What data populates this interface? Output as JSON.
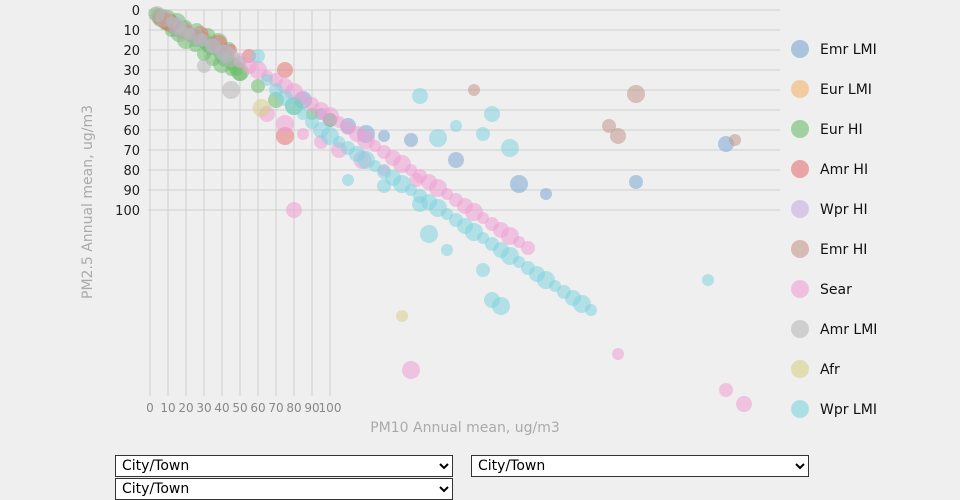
{
  "controls": {
    "x_select": {
      "options": [
        "City/Town"
      ],
      "selected": "City/Town"
    },
    "y_select": {
      "options": [
        "City/Town"
      ],
      "selected": "City/Town"
    },
    "size_select": {
      "options": [
        "City/Town"
      ],
      "selected": "City/Town"
    }
  },
  "chart_data": {
    "type": "scatter",
    "xlabel": "PM10 Annual mean, ug/m3",
    "ylabel": "PM2.5 Annual mean, ug/m3",
    "x_ticks": [
      0,
      10,
      20,
      30,
      40,
      50,
      60,
      70,
      80,
      90,
      100
    ],
    "y_ticks": [
      0,
      10,
      20,
      30,
      40,
      50,
      60,
      70,
      80,
      90,
      100
    ],
    "grid": true,
    "legend_position": "right",
    "series": [
      {
        "name": "Emr LMI",
        "color": "#7ba7d1",
        "points": [
          [
            85,
            45
          ],
          [
            95,
            52
          ],
          [
            100,
            55
          ],
          [
            110,
            58
          ],
          [
            120,
            62
          ],
          [
            130,
            63
          ],
          [
            145,
            65
          ],
          [
            170,
            75
          ],
          [
            205,
            87
          ],
          [
            220,
            92
          ],
          [
            270,
            86
          ],
          [
            320,
            67
          ]
        ]
      },
      {
        "name": "Eur LMI",
        "color": "#f3b26b",
        "points": [
          [
            5,
            3
          ],
          [
            8,
            5
          ],
          [
            12,
            7
          ],
          [
            15,
            9
          ],
          [
            20,
            10
          ],
          [
            25,
            13
          ],
          [
            30,
            15
          ]
        ]
      },
      {
        "name": "Eur HI",
        "color": "#6dbd6d",
        "points": [
          [
            3,
            2
          ],
          [
            5,
            3
          ],
          [
            6,
            4
          ],
          [
            8,
            5
          ],
          [
            9,
            6
          ],
          [
            10,
            6
          ],
          [
            12,
            7
          ],
          [
            14,
            8
          ],
          [
            15,
            9
          ],
          [
            17,
            10
          ],
          [
            18,
            10
          ],
          [
            20,
            11
          ],
          [
            22,
            12
          ],
          [
            24,
            13
          ],
          [
            26,
            14
          ],
          [
            28,
            15
          ],
          [
            30,
            16
          ],
          [
            32,
            17
          ],
          [
            34,
            18
          ],
          [
            36,
            19
          ],
          [
            38,
            20
          ],
          [
            40,
            22
          ],
          [
            42,
            24
          ],
          [
            44,
            25
          ],
          [
            46,
            27
          ],
          [
            48,
            29
          ],
          [
            50,
            31
          ],
          [
            8,
            7
          ],
          [
            12,
            10
          ],
          [
            16,
            12
          ],
          [
            20,
            15
          ],
          [
            25,
            18
          ],
          [
            30,
            22
          ],
          [
            35,
            24
          ],
          [
            40,
            27
          ],
          [
            45,
            30
          ],
          [
            50,
            32
          ],
          [
            10,
            4
          ],
          [
            15,
            6
          ],
          [
            20,
            8
          ],
          [
            26,
            10
          ],
          [
            32,
            13
          ],
          [
            38,
            16
          ],
          [
            44,
            19
          ],
          [
            60,
            38
          ],
          [
            70,
            45
          ],
          [
            80,
            48
          ],
          [
            90,
            52
          ],
          [
            100,
            55
          ]
        ]
      },
      {
        "name": "Amr HI",
        "color": "#e57373",
        "points": [
          [
            6,
            4
          ],
          [
            10,
            6
          ],
          [
            14,
            8
          ],
          [
            20,
            10
          ],
          [
            28,
            12
          ],
          [
            38,
            17
          ],
          [
            45,
            20
          ],
          [
            55,
            23
          ],
          [
            75,
            30
          ],
          [
            75,
            63
          ]
        ]
      },
      {
        "name": "Wpr HI",
        "color": "#c5aee0",
        "points": [
          [
            15,
            8
          ],
          [
            22,
            12
          ],
          [
            28,
            15
          ],
          [
            35,
            18
          ],
          [
            42,
            22
          ]
        ]
      },
      {
        "name": "Emr HI",
        "color": "#c4968a",
        "points": [
          [
            180,
            40
          ],
          [
            255,
            58
          ],
          [
            260,
            63
          ],
          [
            270,
            42
          ],
          [
            325,
            65
          ]
        ]
      },
      {
        "name": "Sear",
        "color": "#ee9fd4",
        "points": [
          [
            50,
            25
          ],
          [
            55,
            28
          ],
          [
            60,
            30
          ],
          [
            65,
            33
          ],
          [
            70,
            35
          ],
          [
            75,
            38
          ],
          [
            80,
            41
          ],
          [
            85,
            44
          ],
          [
            90,
            47
          ],
          [
            95,
            50
          ],
          [
            100,
            53
          ],
          [
            105,
            56
          ],
          [
            110,
            59
          ],
          [
            115,
            62
          ],
          [
            120,
            65
          ],
          [
            125,
            68
          ],
          [
            130,
            71
          ],
          [
            135,
            74
          ],
          [
            140,
            77
          ],
          [
            145,
            80
          ],
          [
            150,
            83
          ],
          [
            155,
            86
          ],
          [
            160,
            89
          ],
          [
            165,
            92
          ],
          [
            170,
            95
          ],
          [
            175,
            98
          ],
          [
            180,
            101
          ],
          [
            185,
            104
          ],
          [
            190,
            107
          ],
          [
            195,
            110
          ],
          [
            200,
            113
          ],
          [
            205,
            116
          ],
          [
            210,
            119
          ],
          [
            65,
            52
          ],
          [
            75,
            57
          ],
          [
            85,
            62
          ],
          [
            95,
            66
          ],
          [
            105,
            70
          ],
          [
            118,
            75
          ],
          [
            130,
            80
          ],
          [
            148,
            85
          ],
          [
            80,
            100
          ],
          [
            145,
            180
          ],
          [
            260,
            172
          ],
          [
            320,
            190
          ],
          [
            330,
            197
          ]
        ]
      },
      {
        "name": "Amr LMI",
        "color": "#b8b8b8",
        "points": [
          [
            4,
            2
          ],
          [
            8,
            4
          ],
          [
            12,
            6
          ],
          [
            16,
            8
          ],
          [
            20,
            10
          ],
          [
            25,
            13
          ],
          [
            30,
            15
          ],
          [
            35,
            18
          ],
          [
            40,
            21
          ],
          [
            45,
            24
          ],
          [
            50,
            26
          ],
          [
            30,
            28
          ],
          [
            18,
            12
          ],
          [
            45,
            40
          ],
          [
            100,
            55
          ]
        ]
      },
      {
        "name": "Afr",
        "color": "#d6d08a",
        "points": [
          [
            62,
            49
          ],
          [
            140,
            153
          ]
        ]
      },
      {
        "name": "Wpr LMI",
        "color": "#7fd3de",
        "points": [
          [
            65,
            35
          ],
          [
            70,
            40
          ],
          [
            75,
            44
          ],
          [
            80,
            48
          ],
          [
            85,
            52
          ],
          [
            90,
            56
          ],
          [
            95,
            60
          ],
          [
            100,
            63
          ],
          [
            105,
            66
          ],
          [
            110,
            69
          ],
          [
            115,
            72
          ],
          [
            120,
            75
          ],
          [
            125,
            78
          ],
          [
            130,
            81
          ],
          [
            135,
            84
          ],
          [
            140,
            87
          ],
          [
            145,
            90
          ],
          [
            150,
            93
          ],
          [
            155,
            96
          ],
          [
            160,
            99
          ],
          [
            165,
            102
          ],
          [
            170,
            105
          ],
          [
            175,
            108
          ],
          [
            180,
            111
          ],
          [
            185,
            114
          ],
          [
            190,
            117
          ],
          [
            195,
            120
          ],
          [
            200,
            123
          ],
          [
            205,
            126
          ],
          [
            210,
            129
          ],
          [
            215,
            132
          ],
          [
            220,
            135
          ],
          [
            225,
            138
          ],
          [
            230,
            141
          ],
          [
            235,
            144
          ],
          [
            240,
            147
          ],
          [
            245,
            150
          ],
          [
            60,
            23
          ],
          [
            150,
            43
          ],
          [
            160,
            64
          ],
          [
            170,
            58
          ],
          [
            185,
            62
          ],
          [
            190,
            52
          ],
          [
            200,
            69
          ],
          [
            110,
            85
          ],
          [
            130,
            88
          ],
          [
            150,
            97
          ],
          [
            155,
            112
          ],
          [
            165,
            120
          ],
          [
            185,
            130
          ],
          [
            190,
            145
          ],
          [
            195,
            148
          ],
          [
            310,
            135
          ]
        ]
      }
    ]
  }
}
